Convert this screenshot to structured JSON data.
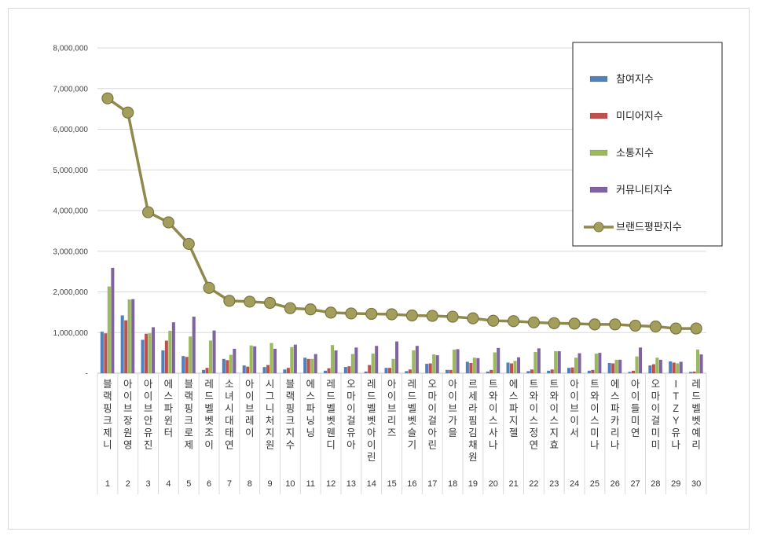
{
  "chart_data": {
    "type": "bar",
    "ylim": [
      0,
      8000000
    ],
    "y_ticks": [
      "8,000,000",
      "7,000,000",
      "6,000,000",
      "5,000,000",
      "4,000,000",
      "3,000,000",
      "2,000,000",
      "1,000,000",
      "-"
    ],
    "grid": true,
    "legend_position": "top-right",
    "ranks": [
      "1",
      "2",
      "3",
      "4",
      "5",
      "6",
      "7",
      "8",
      "9",
      "10",
      "11",
      "12",
      "13",
      "14",
      "15",
      "16",
      "17",
      "18",
      "19",
      "20",
      "21",
      "22",
      "23",
      "24",
      "25",
      "26",
      "27",
      "28",
      "29",
      "30"
    ],
    "categories": [
      "블랙핑크제니",
      "아이브장원영",
      "아이브안유진",
      "에스파윈터",
      "블랙핑크로제",
      "레드벨벳조이",
      "소녀시대태연",
      "아이브레이",
      "시그니처지원",
      "블랙핑크지수",
      "에스파닝닝",
      "레드벨벳웬디",
      "오마이걸유아",
      "레드벨벳아이린",
      "아이브리즈",
      "레드벨벳슬기",
      "오마이걸아린",
      "아이브가을",
      "르세라핌김채원",
      "트와이스사나",
      "에스파지젤",
      "트와이스정연",
      "트와이스지효",
      "아이브이서",
      "트와이스미나",
      "에스파카리나",
      "아이들미연",
      "오마이걸미미",
      "ITZY유나",
      "레드벨벳예리"
    ],
    "series": [
      {
        "name": "참여지수",
        "color": "#4f81bd",
        "type": "bar",
        "values": [
          1020000,
          1420000,
          820000,
          560000,
          420000,
          80000,
          350000,
          190000,
          150000,
          90000,
          380000,
          60000,
          150000,
          40000,
          130000,
          50000,
          230000,
          80000,
          280000,
          40000,
          260000,
          50000,
          60000,
          130000,
          60000,
          250000,
          30000,
          190000,
          290000,
          30000
        ]
      },
      {
        "name": "미디어지수",
        "color": "#c0504d",
        "type": "bar",
        "values": [
          980000,
          1300000,
          970000,
          800000,
          400000,
          130000,
          320000,
          160000,
          200000,
          130000,
          350000,
          120000,
          170000,
          200000,
          130000,
          90000,
          240000,
          80000,
          250000,
          80000,
          240000,
          90000,
          90000,
          140000,
          80000,
          240000,
          60000,
          220000,
          260000,
          40000
        ]
      },
      {
        "name": "소통지수",
        "color": "#9bbb59",
        "type": "bar",
        "values": [
          2130000,
          1810000,
          980000,
          1040000,
          900000,
          800000,
          450000,
          680000,
          740000,
          640000,
          350000,
          690000,
          470000,
          480000,
          350000,
          560000,
          460000,
          580000,
          380000,
          510000,
          300000,
          520000,
          540000,
          380000,
          480000,
          330000,
          410000,
          380000,
          240000,
          580000
        ]
      },
      {
        "name": "커뮤니티지수",
        "color": "#8064a2",
        "type": "bar",
        "values": [
          2590000,
          1820000,
          1130000,
          1250000,
          1390000,
          1050000,
          600000,
          660000,
          600000,
          700000,
          470000,
          560000,
          630000,
          670000,
          780000,
          670000,
          440000,
          590000,
          370000,
          620000,
          390000,
          610000,
          540000,
          490000,
          500000,
          330000,
          630000,
          330000,
          280000,
          460000
        ]
      },
      {
        "name": "브랜드평판지수",
        "color": "#8f8a4c",
        "type": "line",
        "values": [
          6760000,
          6410000,
          3960000,
          3710000,
          3180000,
          2100000,
          1780000,
          1760000,
          1730000,
          1600000,
          1570000,
          1490000,
          1470000,
          1460000,
          1450000,
          1420000,
          1410000,
          1390000,
          1350000,
          1290000,
          1280000,
          1250000,
          1230000,
          1220000,
          1200000,
          1200000,
          1170000,
          1150000,
          1100000,
          1100000
        ]
      }
    ]
  }
}
